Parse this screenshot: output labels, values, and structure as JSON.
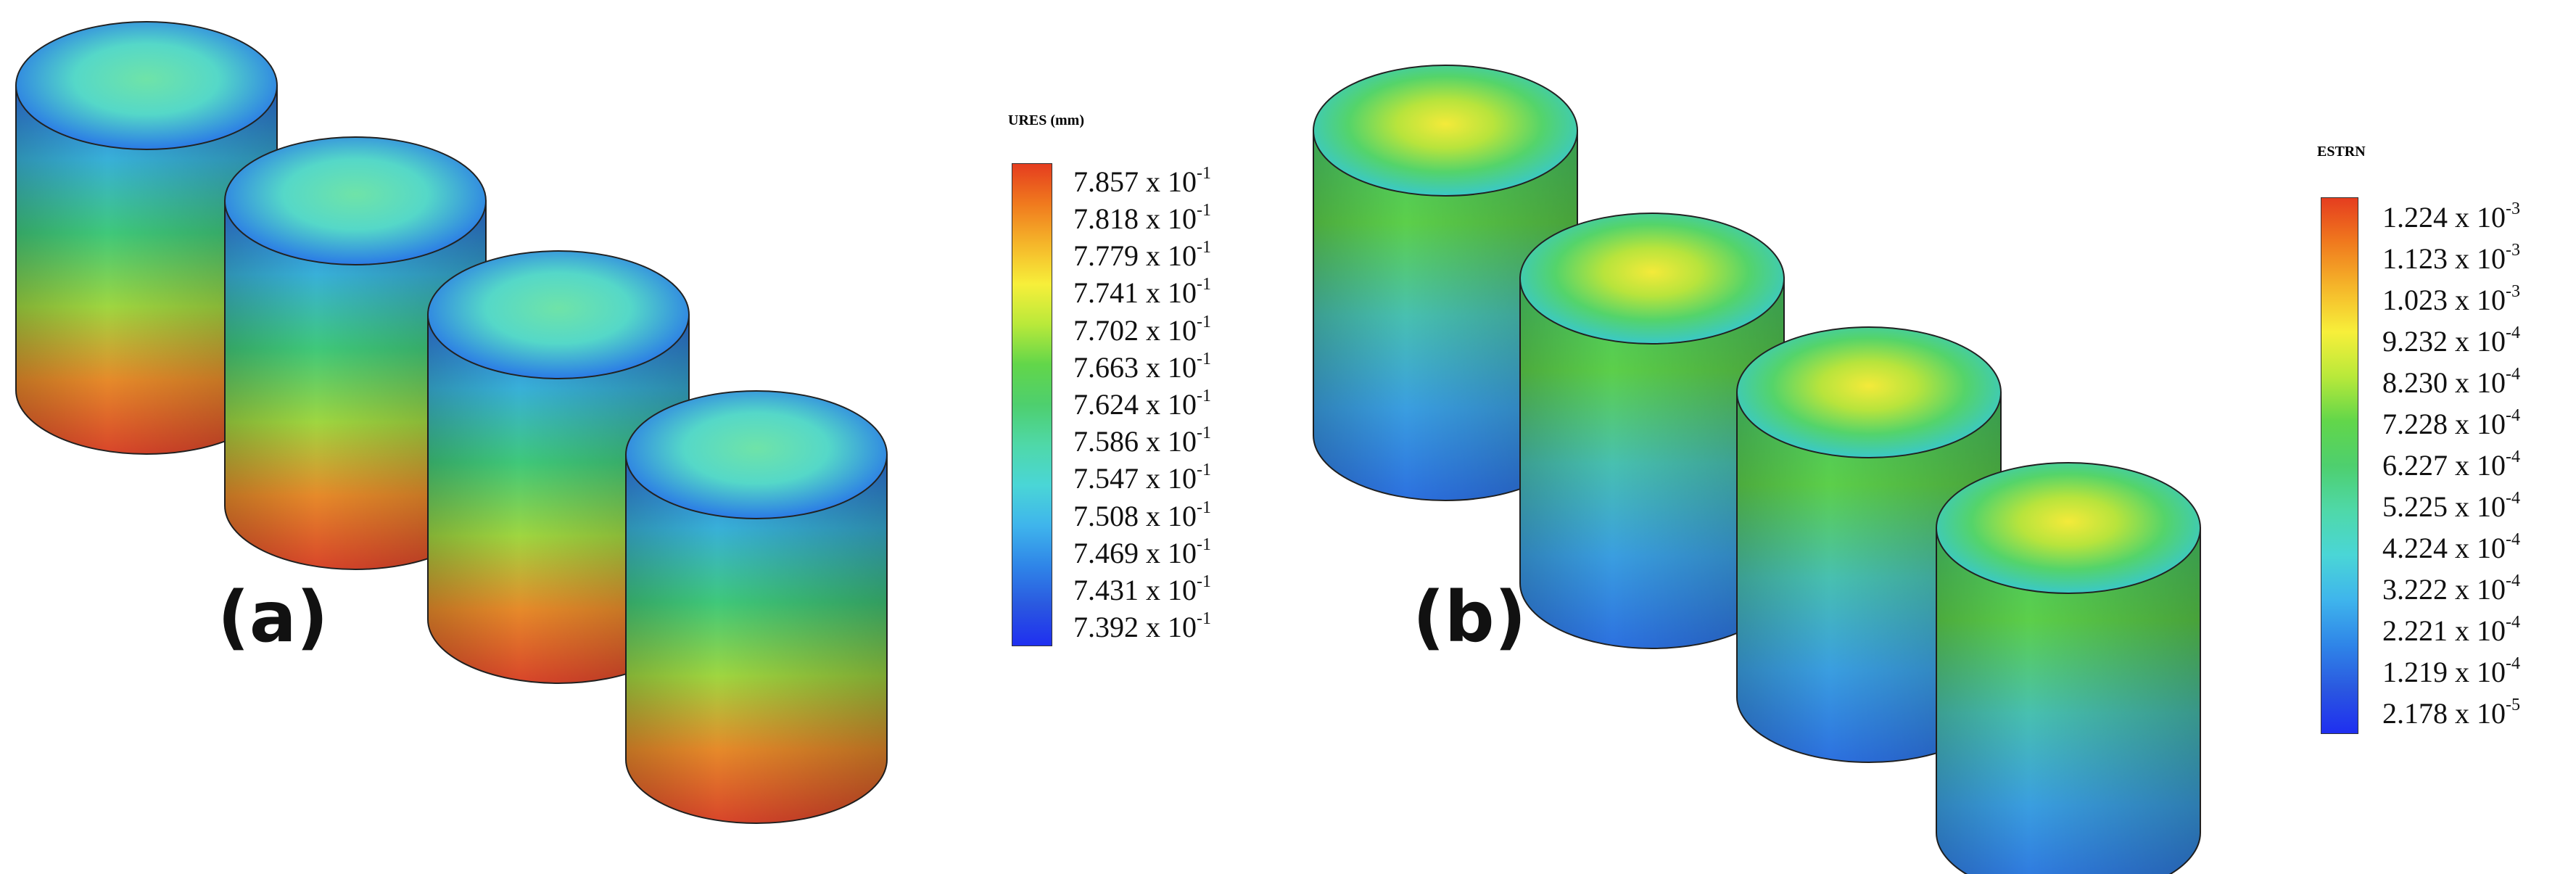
{
  "panel_a": {
    "label": "(a)",
    "legend": {
      "title": "URES (mm)",
      "colors": [
        "#e53d1f",
        "#f07a1e",
        "#f5b62a",
        "#f7ef3a",
        "#b9e93a",
        "#62d64a",
        "#4ecf6e",
        "#4fd8a8",
        "#4ad6d6",
        "#3fb5ec",
        "#2f86e8",
        "#2a58e0",
        "#1f2ff0"
      ],
      "ticks": [
        {
          "mantissa": "7.857 x 10",
          "exp": "-1"
        },
        {
          "mantissa": "7.818 x 10",
          "exp": "-1"
        },
        {
          "mantissa": "7.779 x 10",
          "exp": "-1"
        },
        {
          "mantissa": "7.741 x 10",
          "exp": "-1"
        },
        {
          "mantissa": "7.702 x 10",
          "exp": "-1"
        },
        {
          "mantissa": "7.663 x 10",
          "exp": "-1"
        },
        {
          "mantissa": "7.624 x 10",
          "exp": "-1"
        },
        {
          "mantissa": "7.586 x 10",
          "exp": "-1"
        },
        {
          "mantissa": "7.547 x 10",
          "exp": "-1"
        },
        {
          "mantissa": "7.508 x 10",
          "exp": "-1"
        },
        {
          "mantissa": "7.469 x 10",
          "exp": "-1"
        },
        {
          "mantissa": "7.431 x 10",
          "exp": "-1"
        },
        {
          "mantissa": "7.392 x 10",
          "exp": "-1"
        }
      ]
    },
    "cylinder_shading": {
      "top_disc": [
        "#6fe3a8",
        "#55d8c8",
        "#2a7ae6"
      ],
      "side": [
        "#2e6fe0",
        "#38b0d8",
        "#3fc87a",
        "#9fd640",
        "#e68a2a",
        "#d8442a"
      ]
    }
  },
  "panel_b": {
    "label": "(b)",
    "legend": {
      "title": "ESTRN",
      "colors": [
        "#e53d1f",
        "#f07a1e",
        "#f5b62a",
        "#f7ef3a",
        "#b9e93a",
        "#62d64a",
        "#4ecf6e",
        "#4fd8a8",
        "#4ad6d6",
        "#3fb5ec",
        "#2f86e8",
        "#2a58e0",
        "#1f2ff0"
      ],
      "ticks": [
        {
          "mantissa": "1.224 x 10",
          "exp": "-3"
        },
        {
          "mantissa": "1.123 x 10",
          "exp": "-3"
        },
        {
          "mantissa": "1.023 x 10",
          "exp": "-3"
        },
        {
          "mantissa": "9.232 x 10",
          "exp": "-4"
        },
        {
          "mantissa": "8.230 x 10",
          "exp": "-4"
        },
        {
          "mantissa": "7.228 x 10",
          "exp": "-4"
        },
        {
          "mantissa": "6.227 x 10",
          "exp": "-4"
        },
        {
          "mantissa": "5.225 x 10",
          "exp": "-4"
        },
        {
          "mantissa": "4.224 x 10",
          "exp": "-4"
        },
        {
          "mantissa": "3.222 x 10",
          "exp": "-4"
        },
        {
          "mantissa": "2.221 x 10",
          "exp": "-4"
        },
        {
          "mantissa": "1.219 x 10",
          "exp": "-4"
        },
        {
          "mantissa": "2.178 x 10",
          "exp": "-5"
        }
      ]
    },
    "cylinder_shading": {
      "top_disc": [
        "#f4ea3a",
        "#b8e43c",
        "#54d46a",
        "#3ac8c8"
      ],
      "side": [
        "#46c86a",
        "#5ccf4a",
        "#48c0b0",
        "#3a9ee0",
        "#2c70e0"
      ]
    }
  }
}
